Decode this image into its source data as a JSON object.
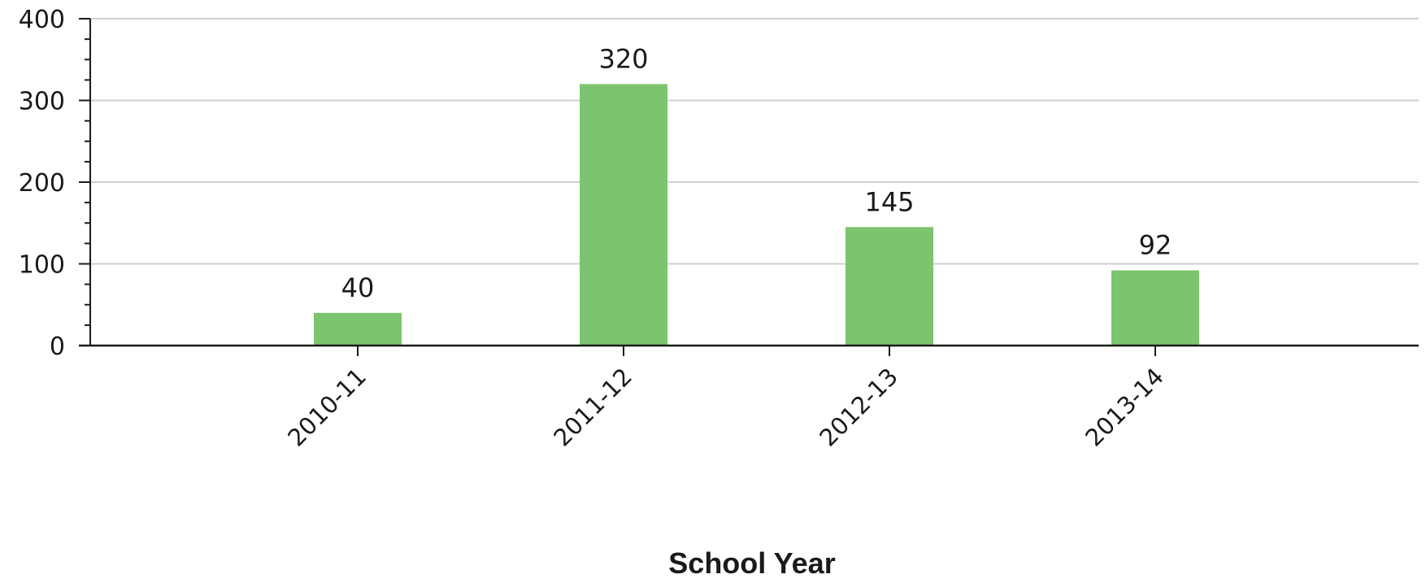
{
  "chart_data": {
    "type": "bar",
    "categories": [
      "2010-11",
      "2011-12",
      "2012-13",
      "2013-14"
    ],
    "values": [
      40,
      320,
      145,
      92
    ],
    "data_labels": [
      "40",
      "320",
      "145",
      "92"
    ],
    "title": "",
    "xlabel": "School Year",
    "ylabel": "",
    "ylim": [
      0,
      400
    ],
    "yticks": [
      0,
      100,
      200,
      300,
      400
    ],
    "grid": true,
    "bar_color": "#7cc46d",
    "grid_color": "#d0d0d0",
    "axis_color": "#1a1a1a"
  }
}
